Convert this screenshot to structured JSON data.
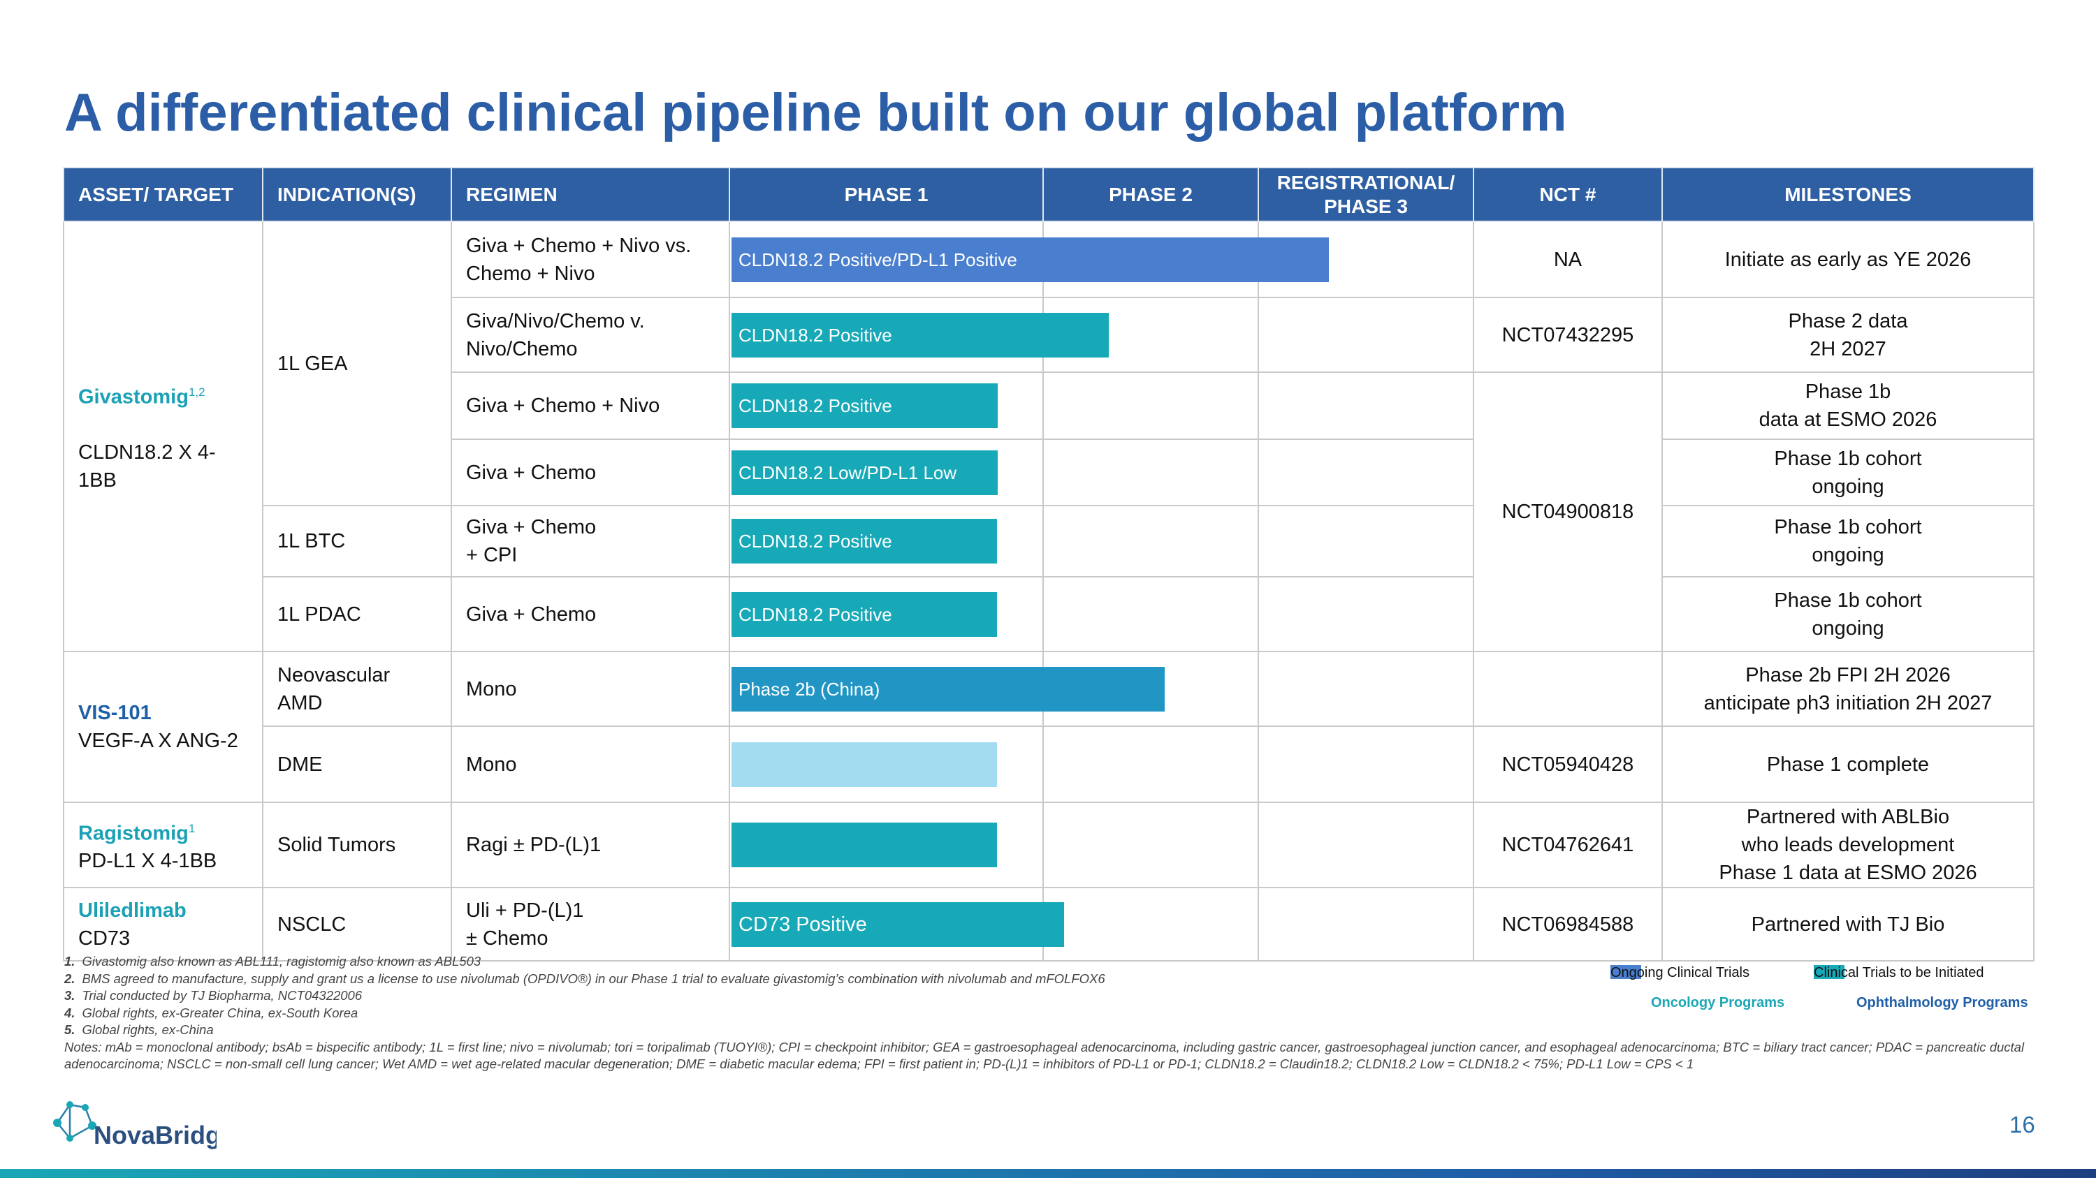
{
  "header": {
    "title": "A differentiated clinical pipeline built on our global platform"
  },
  "table": {
    "columns": [
      "ASSET/ TARGET",
      "INDICATION(S)",
      "REGIMEN",
      "PHASE 1",
      "PHASE 2",
      "REGISTRATIONAL/ PHASE 3",
      "NCT #",
      "MILESTONES"
    ],
    "rows": [
      {
        "asset": {
          "name": "Givastomig",
          "sup": "1,2",
          "target": "CLDN18.2 X 4-1BB"
        },
        "indication": "1L GEA",
        "regimen": [
          "Giva + Chemo + Nivo  vs.",
          "Chemo + Nivo"
        ],
        "bar": "CLDN18.2 Positive/PD-L1 Positive",
        "nct": "NA",
        "milestone": [
          "Initiate as early as YE 2026"
        ]
      },
      {
        "regimen": [
          "Giva/Nivo/Chemo v.",
          "Nivo/Chemo"
        ],
        "bar": "CLDN18.2 Positive",
        "nct": "NCT07432295",
        "milestone": [
          "Phase 2 data",
          "2H 2027"
        ]
      },
      {
        "regimen": [
          "Giva + Chemo + Nivo"
        ],
        "bar": "CLDN18.2 Positive",
        "nct": "NCT04900818",
        "milestone": [
          "Phase 1b",
          "data at ESMO 2026"
        ]
      },
      {
        "regimen": [
          "Giva + Chemo"
        ],
        "bar": "CLDN18.2 Low/PD-L1 Low",
        "milestone": [
          "Phase 1b cohort",
          "ongoing"
        ]
      },
      {
        "indication": "1L BTC",
        "regimen": [
          "Giva + Chemo",
          "+ CPI"
        ],
        "bar": "CLDN18.2 Positive",
        "milestone": [
          "Phase 1b cohort",
          "ongoing"
        ]
      },
      {
        "indication": "1L PDAC",
        "regimen": [
          "Giva + Chemo"
        ],
        "bar": "CLDN18.2 Positive",
        "milestone": [
          "Phase 1b cohort",
          "ongoing"
        ]
      },
      {
        "asset": {
          "name": "VIS-101",
          "target": "VEGF-A X ANG-2"
        },
        "indication": "Neovascular AMD",
        "regimen": [
          "Mono"
        ],
        "bar": "Phase 2b (China)",
        "milestone": [
          "Phase 2b FPI 2H 2026",
          "anticipate ph3 initiation 2H 2027"
        ]
      },
      {
        "indication": "DME",
        "regimen": [
          "Mono"
        ],
        "nct": "NCT05940428",
        "milestone": [
          "Phase 1 complete"
        ]
      },
      {
        "asset": {
          "name": "Ragistomig",
          "sup": "1",
          "target": "PD-L1 X 4-1BB"
        },
        "indication": "Solid Tumors",
        "regimen": [
          "Ragi ± PD-(L)1"
        ],
        "nct": "NCT04762641",
        "milestone": [
          "Partnered with ABLBio",
          "who leads development",
          "Phase 1 data at ESMO 2026"
        ]
      },
      {
        "asset": {
          "name": "Uliledlimab",
          "target": "CD73"
        },
        "indication": "NSCLC",
        "regimen": [
          "Uli + PD-(L)1",
          "± Chemo"
        ],
        "bar": "CD73 Positive",
        "nct": "NCT06984588",
        "milestone": [
          "Partnered with TJ Bio"
        ]
      }
    ]
  },
  "footnotes": [
    {
      "number": "1.",
      "text": "Givastomig also known as ABL111, ragistomig also known as ABL503"
    },
    {
      "number": "2.",
      "text": "BMS agreed to manufacture, supply and grant us a license to use nivolumab (OPDIVO®) in our Phase 1 trial to evaluate givastomig’s combination with nivolumab and mFOLFOX6"
    },
    {
      "number": "3.",
      "text": "Trial conducted by TJ Biopharma, NCT04322006"
    },
    {
      "number": "4.",
      "text": "Global rights, ex-Greater China, ex-South Korea"
    },
    {
      "number": "5.",
      "text": "Global rights, ex-China"
    }
  ],
  "notes": "Notes: mAb = monoclonal antibody; bsAb = bispecific antibody; 1L = first line; nivo = nivolumab; tori = toripalimab (TUOYI®); CPI = checkpoint inhibitor; GEA = gastroesophageal adenocarcinoma, including gastric cancer, gastroesophageal junction cancer, and esophageal adenocarcinoma; BTC = biliary tract cancer; PDAC = pancreatic ductal adenocarcinoma; NSCLC = non-small cell lung cancer; Wet AMD = wet age-related macular degeneration; DME = diabetic macular edema; FPI = first patient in; PD-(L)1 = inhibitors of PD-L1 or PD-1; CLDN18.2 = Claudin18.2; CLDN18.2 Low = CLDN18.2 < 75%; PD-L1 Low = CPS < 1",
  "legend": {
    "ongoing": "Ongoing Clinical Trials",
    "initiated": "Clinical Trials to be Initiated",
    "oncology": "Oncology Programs",
    "ophthalmology": "Ophthalmology Programs"
  },
  "footer": {
    "logo": "NovaBridge",
    "page": "16"
  }
}
